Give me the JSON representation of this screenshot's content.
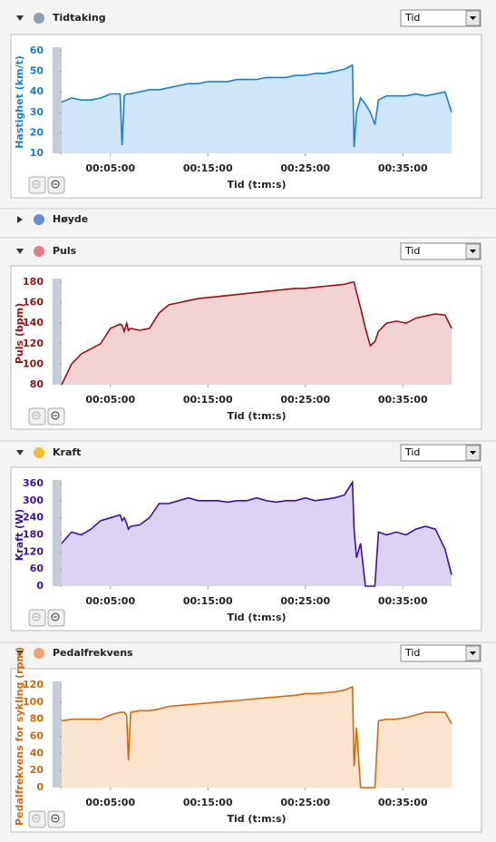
{
  "panels": [
    {
      "title": "Tidtaking",
      "select": "Tid"
    },
    {
      "title": "Høyde"
    },
    {
      "title": "Puls",
      "select": "Tid"
    },
    {
      "title": "Kraft",
      "select": "Tid"
    },
    {
      "title": "Pedalfrekvens",
      "select": "Tid"
    }
  ],
  "chart_data": [
    {
      "type": "line",
      "y_label": "Hastighet (km/t)",
      "x_label": "Tid (t:m:s)",
      "x": [
        0,
        60,
        120,
        180,
        240,
        300,
        360,
        372,
        385,
        400,
        411,
        425,
        480,
        540,
        600,
        660,
        720,
        780,
        840,
        900,
        960,
        1020,
        1080,
        1140,
        1200,
        1260,
        1320,
        1380,
        1440,
        1500,
        1560,
        1620,
        1680,
        1740,
        1790,
        1800,
        1815,
        1840,
        1870,
        1900,
        1928,
        1950,
        2000,
        2060,
        2120,
        2180,
        2240,
        2300,
        2360,
        2400
      ],
      "series": [
        {
          "color": "#1a7fd4",
          "fill": "#cfe5f8",
          "values": [
            35,
            37,
            36,
            36,
            37,
            39,
            39,
            14,
            38,
            39,
            39,
            39,
            40,
            41,
            41,
            42,
            43,
            44,
            44,
            45,
            45,
            45,
            46,
            46,
            46,
            47,
            47,
            47,
            48,
            48,
            49,
            49,
            50,
            51,
            53,
            13,
            30,
            37,
            34,
            30,
            24,
            36,
            38,
            38,
            38,
            39,
            38,
            39,
            40,
            30
          ]
        }
      ],
      "xlim": [
        0,
        2400
      ],
      "xticks": [
        {
          "value": 300,
          "label": "00:05:00"
        },
        {
          "value": 900,
          "label": "00:15:00"
        },
        {
          "value": 1500,
          "label": "00:25:00"
        },
        {
          "value": 2100,
          "label": "00:35:00"
        }
      ],
      "ylim": [
        10,
        60
      ],
      "yticks": [
        10,
        20,
        30,
        40,
        50,
        60
      ]
    },
    {
      "type": "line",
      "y_label": "Puls (bpm)",
      "x_label": "Tid (t:m:s)",
      "x": [
        0,
        60,
        120,
        180,
        240,
        300,
        360,
        372,
        385,
        400,
        411,
        425,
        480,
        540,
        600,
        660,
        720,
        780,
        840,
        900,
        960,
        1020,
        1080,
        1140,
        1200,
        1260,
        1320,
        1380,
        1440,
        1500,
        1560,
        1620,
        1680,
        1740,
        1790,
        1800,
        1815,
        1840,
        1870,
        1900,
        1928,
        1950,
        2000,
        2060,
        2120,
        2180,
        2240,
        2300,
        2360,
        2400
      ],
      "series": [
        {
          "color": "#9b1010",
          "fill": "#f1d3d3",
          "values": [
            80,
            100,
            110,
            115,
            120,
            135,
            139,
            138,
            132,
            140,
            133,
            135,
            133,
            135,
            150,
            158,
            160,
            162,
            164,
            165,
            166,
            167,
            168,
            169,
            170,
            171,
            172,
            173,
            174,
            174,
            175,
            176,
            177,
            178,
            180,
            180,
            170,
            155,
            135,
            118,
            122,
            132,
            140,
            142,
            140,
            145,
            147,
            149,
            148,
            135
          ]
        }
      ],
      "xlim": [
        0,
        2400
      ],
      "xticks": [
        {
          "value": 300,
          "label": "00:05:00"
        },
        {
          "value": 900,
          "label": "00:15:00"
        },
        {
          "value": 1500,
          "label": "00:25:00"
        },
        {
          "value": 2100,
          "label": "00:35:00"
        }
      ],
      "ylim": [
        80,
        180
      ],
      "yticks": [
        80,
        100,
        120,
        140,
        160,
        180
      ]
    },
    {
      "type": "line",
      "y_label": "Kraft (W)",
      "x_label": "Tid (t:m:s)",
      "x": [
        0,
        60,
        120,
        180,
        240,
        300,
        360,
        372,
        385,
        400,
        411,
        425,
        480,
        540,
        600,
        660,
        720,
        780,
        840,
        900,
        960,
        1020,
        1080,
        1140,
        1200,
        1260,
        1320,
        1380,
        1440,
        1500,
        1560,
        1620,
        1680,
        1740,
        1790,
        1800,
        1815,
        1840,
        1870,
        1900,
        1928,
        1950,
        2000,
        2060,
        2120,
        2180,
        2240,
        2300,
        2360,
        2400
      ],
      "series": [
        {
          "color": "#3d10a0",
          "fill": "#dcd3f2",
          "values": [
            150,
            190,
            180,
            200,
            230,
            240,
            250,
            230,
            240,
            220,
            200,
            210,
            215,
            240,
            290,
            290,
            300,
            310,
            300,
            300,
            300,
            295,
            300,
            300,
            310,
            300,
            295,
            300,
            300,
            310,
            300,
            305,
            310,
            320,
            365,
            200,
            100,
            150,
            0,
            0,
            0,
            190,
            180,
            190,
            180,
            200,
            210,
            200,
            130,
            40
          ]
        }
      ],
      "xlim": [
        0,
        2400
      ],
      "xticks": [
        {
          "value": 300,
          "label": "00:05:00"
        },
        {
          "value": 900,
          "label": "00:15:00"
        },
        {
          "value": 1500,
          "label": "00:25:00"
        },
        {
          "value": 2100,
          "label": "00:35:00"
        }
      ],
      "ylim": [
        0,
        360
      ],
      "yticks": [
        0,
        60,
        120,
        180,
        240,
        300,
        360
      ]
    },
    {
      "type": "line",
      "y_label": "Pedalfrekvens for sykling (rpm)",
      "x_label": "Tid (t:m:s)",
      "x": [
        0,
        60,
        120,
        180,
        240,
        300,
        360,
        372,
        385,
        400,
        411,
        425,
        480,
        540,
        600,
        660,
        720,
        780,
        840,
        900,
        960,
        1020,
        1080,
        1140,
        1200,
        1260,
        1320,
        1380,
        1440,
        1500,
        1560,
        1620,
        1680,
        1740,
        1790,
        1800,
        1815,
        1840,
        1870,
        1900,
        1928,
        1950,
        2000,
        2060,
        2120,
        2180,
        2240,
        2300,
        2360,
        2400
      ],
      "series": [
        {
          "color": "#d4690c",
          "fill": "#fbe4cd",
          "values": [
            78,
            80,
            80,
            80,
            80,
            85,
            88,
            88,
            88,
            85,
            32,
            88,
            90,
            90,
            92,
            95,
            96,
            97,
            98,
            99,
            100,
            101,
            102,
            103,
            104,
            105,
            106,
            107,
            108,
            110,
            110,
            111,
            112,
            114,
            118,
            25,
            70,
            0,
            0,
            0,
            0,
            78,
            80,
            80,
            82,
            85,
            88,
            88,
            88,
            75
          ]
        }
      ],
      "xlim": [
        0,
        2400
      ],
      "xticks": [
        {
          "value": 300,
          "label": "00:05:00"
        },
        {
          "value": 900,
          "label": "00:15:00"
        },
        {
          "value": 1500,
          "label": "00:25:00"
        },
        {
          "value": 2100,
          "label": "00:35:00"
        }
      ],
      "ylim": [
        0,
        120
      ],
      "yticks": [
        0,
        20,
        40,
        60,
        80,
        100,
        120
      ]
    }
  ]
}
